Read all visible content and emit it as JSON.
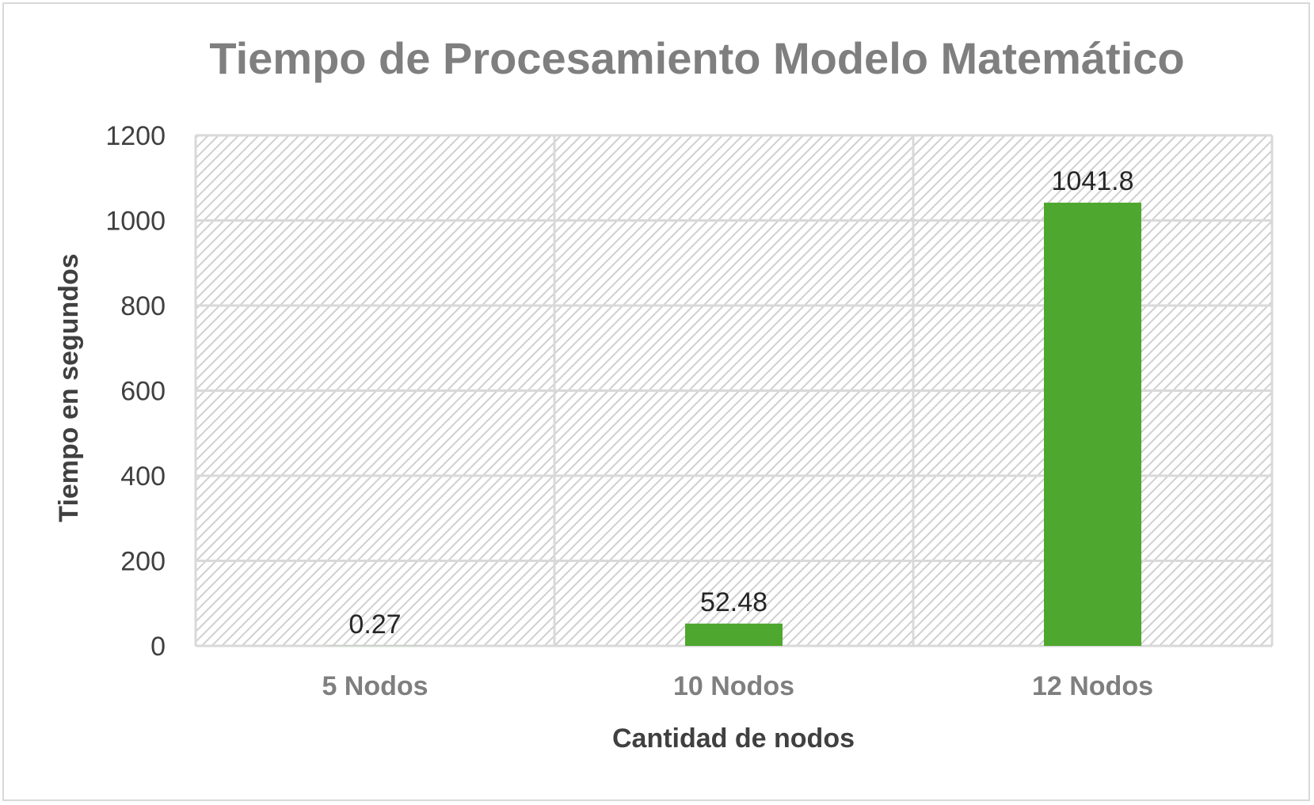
{
  "chart_data": {
    "type": "bar",
    "title": "Tiempo de Procesamiento Modelo Matemático",
    "xlabel": "Cantidad de nodos",
    "ylabel": "Tiempo en segundos",
    "categories": [
      "5 Nodos",
      "10 Nodos",
      "12 Nodos"
    ],
    "values": [
      0.27,
      52.48,
      1041.8
    ],
    "data_labels": [
      "0.27",
      "52.48",
      "1041.8"
    ],
    "ylim": [
      0,
      1200
    ],
    "yticks": [
      0,
      200,
      400,
      600,
      800,
      1000,
      1200
    ],
    "grid": true,
    "plot_background": "diagonal-hatch",
    "legend": "none",
    "colors": {
      "bar": "#4ea72e",
      "grid": "#d9d9d9",
      "hatch": "#d0d0d0",
      "title": "#7f7f7f"
    }
  }
}
